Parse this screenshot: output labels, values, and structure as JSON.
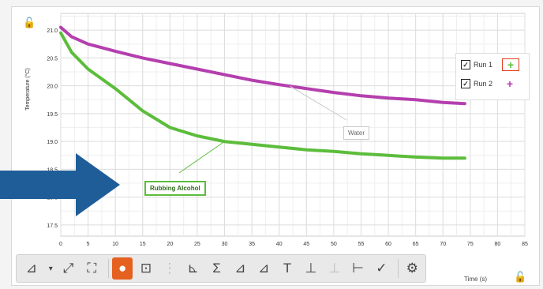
{
  "chart_data": {
    "type": "line",
    "title": "",
    "xlabel": "Time (s)",
    "ylabel": "Temperature (°C)",
    "xlim": [
      0,
      85
    ],
    "ylim": [
      17.3,
      21.3
    ],
    "x_ticks": [
      0,
      5,
      10,
      15,
      20,
      25,
      30,
      35,
      40,
      45,
      50,
      55,
      60,
      65,
      70,
      75,
      80,
      85
    ],
    "y_ticks": [
      17.5,
      18.0,
      18.5,
      19.0,
      19.5,
      20.0,
      20.5,
      21.0
    ],
    "grid": true,
    "legend_position": "top-right",
    "series": [
      {
        "name": "Run 1",
        "color": "#5cbd3c",
        "x": [
          0,
          2,
          5,
          10,
          15,
          20,
          25,
          30,
          35,
          40,
          45,
          50,
          55,
          60,
          65,
          70,
          74
        ],
        "y": [
          20.95,
          20.6,
          20.3,
          19.95,
          19.55,
          19.25,
          19.1,
          19.0,
          18.95,
          18.9,
          18.85,
          18.82,
          18.78,
          18.75,
          18.72,
          18.7,
          18.7
        ]
      },
      {
        "name": "Run 2",
        "color": "#b43fae",
        "x": [
          0,
          2,
          5,
          10,
          15,
          20,
          25,
          30,
          35,
          40,
          45,
          50,
          55,
          60,
          65,
          70,
          74
        ],
        "y": [
          21.05,
          20.88,
          20.75,
          20.62,
          20.5,
          20.4,
          20.3,
          20.2,
          20.1,
          20.02,
          19.95,
          19.88,
          19.82,
          19.78,
          19.75,
          19.7,
          19.68
        ]
      }
    ],
    "annotations": [
      {
        "text": "Rubbing Alcohol",
        "series": "Run 1"
      },
      {
        "text": "Water",
        "series": "Run 2"
      }
    ]
  },
  "toolbar": {
    "time_label": "Time (s)",
    "buttons": [
      {
        "name": "graph-options-icon",
        "glyph": "⤢",
        "state": "normal"
      },
      {
        "name": "autoscale-icon",
        "glyph": "⛶",
        "state": "normal"
      },
      {
        "name": "select-icon",
        "glyph": "●",
        "state": "active"
      },
      {
        "name": "examine-icon",
        "glyph": "⊡",
        "state": "normal"
      },
      {
        "name": "interpolate-icon",
        "glyph": "⋮",
        "state": "faded"
      },
      {
        "name": "statistics-icon",
        "glyph": "⊾",
        "state": "normal"
      },
      {
        "name": "integral-icon",
        "glyph": "Σ",
        "state": "normal"
      },
      {
        "name": "tangent-icon",
        "glyph": "⊿",
        "state": "normal"
      },
      {
        "name": "curve-fit-icon",
        "glyph": "⊿",
        "state": "normal"
      },
      {
        "name": "annotation-icon",
        "glyph": "T",
        "state": "normal"
      },
      {
        "name": "axis-icon",
        "glyph": "⊥",
        "state": "normal"
      },
      {
        "name": "delta-icon",
        "glyph": "⊥",
        "state": "faded"
      },
      {
        "name": "strip-icon",
        "glyph": "⊢",
        "state": "normal"
      },
      {
        "name": "check-icon",
        "glyph": "✓",
        "state": "normal"
      },
      {
        "name": "settings-icon",
        "glyph": "⚙",
        "state": "normal"
      }
    ]
  },
  "legend": {
    "items": [
      {
        "label": "Run 1",
        "checked": "✓",
        "marker": "+",
        "color": "#5cbd3c"
      },
      {
        "label": "Run 2",
        "checked": "✓",
        "marker": "+",
        "color": "#b43fae"
      }
    ]
  },
  "icons": {
    "lock": "🔓"
  },
  "colors": {
    "arrow": "#1f5d99",
    "active_tool": "#e5611f"
  }
}
